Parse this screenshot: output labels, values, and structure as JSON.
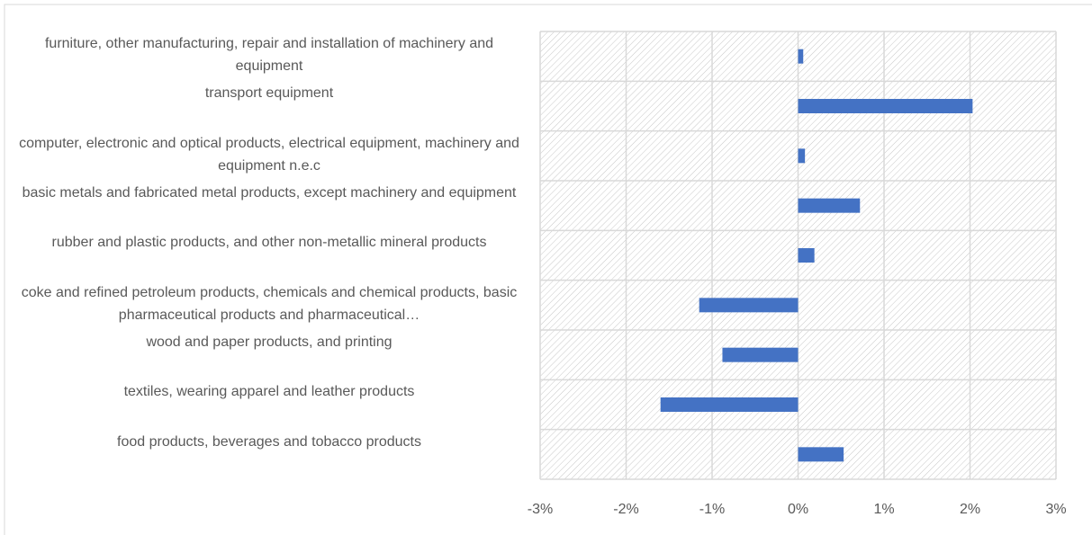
{
  "chart_data": {
    "type": "bar",
    "orientation": "horizontal",
    "categories": [
      "furniture, other manufacturing, repair and installation of machinery and equipment",
      "transport equipment",
      "computer, electronic and optical products, electrical equipment, machinery and equipment n.e.c",
      "basic metals and fabricated metal products, except machinery and equipment",
      "rubber and plastic products, and other non-metallic mineral products",
      "coke and refined petroleum products, chemicals and chemical products, basic pharmaceutical products and pharmaceutical…",
      "wood and paper products, and printing",
      "textiles, wearing apparel and leather products",
      "food products, beverages and tobacco products"
    ],
    "values": [
      0.06,
      2.03,
      0.08,
      0.72,
      0.19,
      -1.15,
      -0.88,
      -1.6,
      0.53
    ],
    "color": "#4472c4",
    "xlim": [
      -3,
      3
    ],
    "xticks": [
      {
        "value": -3,
        "label": "-3%"
      },
      {
        "value": -2,
        "label": "-2%"
      },
      {
        "value": -1,
        "label": "-1%"
      },
      {
        "value": 0,
        "label": "0%"
      },
      {
        "value": 1,
        "label": "1%"
      },
      {
        "value": 2,
        "label": "2%"
      },
      {
        "value": 3,
        "label": "3%"
      }
    ],
    "grid": true
  }
}
